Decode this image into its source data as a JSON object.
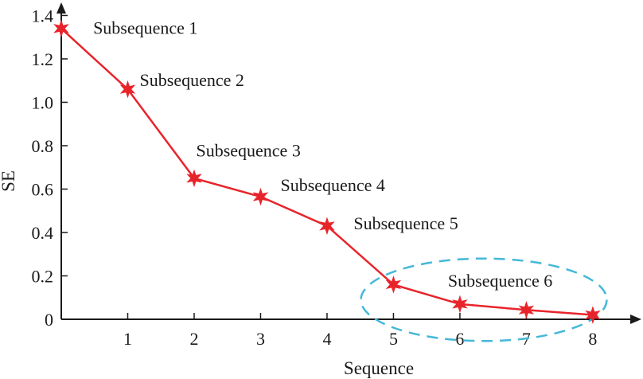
{
  "chart_data": {
    "type": "line",
    "xlabel": "Sequence",
    "ylabel": "SE",
    "xlim": [
      0,
      8.6
    ],
    "ylim": [
      0,
      1.42
    ],
    "x_ticks": [
      1,
      2,
      3,
      4,
      5,
      6,
      7,
      8
    ],
    "y_ticks": [
      0,
      0.2,
      0.4,
      0.6,
      0.8,
      1.0,
      1.2,
      1.4
    ],
    "y_tick_labels": [
      "0",
      "0.2",
      "0.4",
      "0.6",
      "0.8",
      "1.0",
      "1.2",
      "1.4"
    ],
    "grid": false,
    "legend": "none",
    "line_color": "#e8242b",
    "highlight_color": "#45b8d8",
    "series": [
      {
        "x": [
          0,
          1,
          2,
          3,
          4,
          5,
          6,
          7,
          8
        ],
        "values": [
          1.34,
          1.06,
          0.65,
          0.565,
          0.43,
          0.16,
          0.07,
          0.043,
          0.02
        ]
      }
    ],
    "annotations": [
      {
        "text": "Subsequence 1",
        "x": 0.48,
        "y": 1.315
      },
      {
        "text": "Subsequence 2",
        "x": 1.18,
        "y": 1.075
      },
      {
        "text": "Subsequence 3",
        "x": 2.03,
        "y": 0.75
      },
      {
        "text": "Subsequence 4",
        "x": 3.3,
        "y": 0.59
      },
      {
        "text": "Subsequence 5",
        "x": 4.4,
        "y": 0.415
      },
      {
        "text": "Subsequence 6",
        "x": 5.82,
        "y": 0.15
      }
    ],
    "highlight_ellipse": {
      "x_center": 6.36,
      "y_center": 0.09,
      "x_radius": 1.85,
      "y_radius": 0.19
    }
  }
}
